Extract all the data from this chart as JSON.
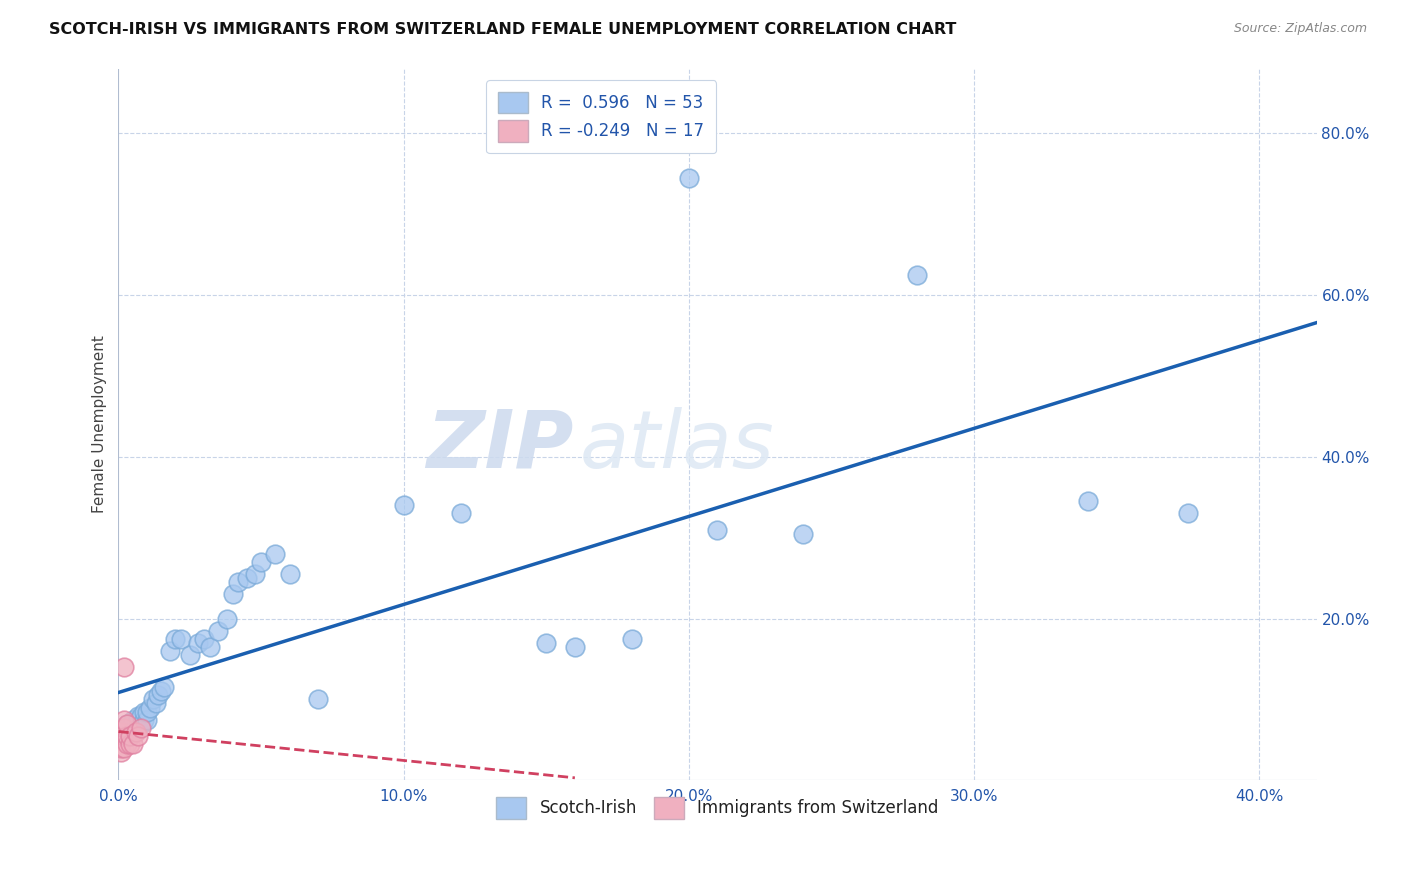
{
  "title": "SCOTCH-IRISH VS IMMIGRANTS FROM SWITZERLAND FEMALE UNEMPLOYMENT CORRELATION CHART",
  "source": "Source: ZipAtlas.com",
  "ylabel": "Female Unemployment",
  "xlim": [
    0.0,
    0.42
  ],
  "ylim": [
    0.0,
    0.88
  ],
  "xticks": [
    0.0,
    0.1,
    0.2,
    0.3,
    0.4
  ],
  "yticks": [
    0.0,
    0.2,
    0.4,
    0.6,
    0.8
  ],
  "xtick_labels": [
    "0.0%",
    "10.0%",
    "20.0%",
    "30.0%",
    "40.0%"
  ],
  "ytick_labels": [
    "",
    "20.0%",
    "40.0%",
    "60.0%",
    "80.0%"
  ],
  "background_color": "#ffffff",
  "grid_color": "#c8d4e8",
  "blue_color": "#a8c8f0",
  "blue_edge_color": "#7aaad8",
  "pink_color": "#f0b0c0",
  "pink_edge_color": "#e080a0",
  "blue_line_color": "#1a5fb0",
  "pink_line_color": "#d04060",
  "legend_R_blue": "0.596",
  "legend_N_blue": "53",
  "legend_R_pink": "-0.249",
  "legend_N_pink": "17",
  "watermark_zip": "ZIP",
  "watermark_atlas": "atlas",
  "scotch_irish_x": [
    0.002,
    0.003,
    0.003,
    0.004,
    0.004,
    0.005,
    0.005,
    0.005,
    0.006,
    0.006,
    0.007,
    0.007,
    0.007,
    0.008,
    0.008,
    0.009,
    0.009,
    0.01,
    0.01,
    0.011,
    0.012,
    0.013,
    0.014,
    0.015,
    0.016,
    0.018,
    0.02,
    0.022,
    0.025,
    0.028,
    0.03,
    0.032,
    0.035,
    0.038,
    0.04,
    0.042,
    0.045,
    0.048,
    0.05,
    0.055,
    0.06,
    0.07,
    0.1,
    0.12,
    0.15,
    0.16,
    0.18,
    0.2,
    0.21,
    0.24,
    0.28,
    0.34,
    0.375
  ],
  "scotch_irish_y": [
    0.06,
    0.065,
    0.07,
    0.055,
    0.065,
    0.06,
    0.07,
    0.075,
    0.065,
    0.07,
    0.07,
    0.075,
    0.08,
    0.07,
    0.08,
    0.075,
    0.085,
    0.075,
    0.085,
    0.09,
    0.1,
    0.095,
    0.105,
    0.11,
    0.115,
    0.16,
    0.175,
    0.175,
    0.155,
    0.17,
    0.175,
    0.165,
    0.185,
    0.2,
    0.23,
    0.245,
    0.25,
    0.255,
    0.27,
    0.28,
    0.255,
    0.1,
    0.34,
    0.33,
    0.17,
    0.165,
    0.175,
    0.745,
    0.31,
    0.305,
    0.625,
    0.345,
    0.33
  ],
  "swiss_x": [
    0.001,
    0.001,
    0.001,
    0.002,
    0.002,
    0.002,
    0.002,
    0.002,
    0.003,
    0.003,
    0.003,
    0.004,
    0.004,
    0.005,
    0.006,
    0.007,
    0.008
  ],
  "swiss_y": [
    0.035,
    0.04,
    0.06,
    0.04,
    0.055,
    0.065,
    0.075,
    0.14,
    0.045,
    0.055,
    0.07,
    0.045,
    0.055,
    0.045,
    0.06,
    0.055,
    0.065
  ]
}
